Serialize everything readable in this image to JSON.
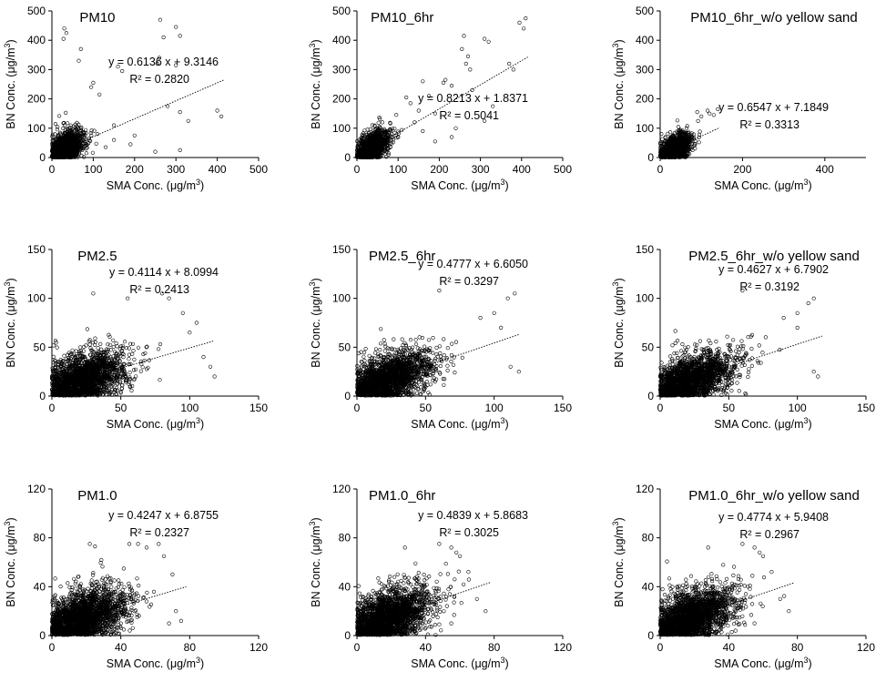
{
  "chart_data": [
    {
      "type": "scatter",
      "title": "PM10",
      "xlabel": "SMA Conc. (μg/m3)",
      "ylabel": "BN Conc. (μg/m3)",
      "xlim": [
        0,
        500
      ],
      "ylim": [
        0,
        500
      ],
      "xticks": [
        0,
        100,
        200,
        300,
        400,
        500
      ],
      "yticks": [
        0,
        100,
        200,
        300,
        400,
        500
      ],
      "equation": "y = 0.6136 x + 9.3146",
      "r2": "R² = 0.2820",
      "slope": 0.6136,
      "intercept": 9.3146,
      "fit_x_range": [
        0,
        415
      ],
      "cloud": {
        "n": 1400,
        "x_mean": 35,
        "x_sd": 22,
        "slope": 0.6136,
        "intercept": 9.3146,
        "noise_sd": 30,
        "x_max": 130
      },
      "outliers": [
        [
          30,
          440
        ],
        [
          35,
          425
        ],
        [
          28,
          405
        ],
        [
          262,
          470
        ],
        [
          270,
          410
        ],
        [
          300,
          445
        ],
        [
          310,
          415
        ],
        [
          160,
          310
        ],
        [
          170,
          295
        ],
        [
          260,
          340
        ],
        [
          255,
          320
        ],
        [
          300,
          315
        ],
        [
          310,
          155
        ],
        [
          400,
          160
        ],
        [
          410,
          140
        ],
        [
          330,
          125
        ],
        [
          280,
          175
        ],
        [
          200,
          75
        ],
        [
          190,
          45
        ],
        [
          250,
          20
        ],
        [
          310,
          25
        ],
        [
          100,
          255
        ],
        [
          95,
          240
        ],
        [
          115,
          215
        ],
        [
          70,
          370
        ],
        [
          65,
          330
        ],
        [
          150,
          60
        ],
        [
          130,
          35
        ],
        [
          150,
          110
        ],
        [
          110,
          80
        ]
      ]
    },
    {
      "type": "scatter",
      "title": "PM10_6hr",
      "xlabel": "SMA Conc. (μg/m3)",
      "ylabel": "BN Conc. (μg/m3)",
      "xlim": [
        0,
        500
      ],
      "ylim": [
        0,
        500
      ],
      "xticks": [
        0,
        100,
        200,
        300,
        400,
        500
      ],
      "yticks": [
        0,
        100,
        200,
        300,
        400,
        500
      ],
      "equation": "y = 0.8213 x + 1.8371",
      "r2": "R² = 0.5041",
      "slope": 0.8213,
      "intercept": 1.8371,
      "fit_x_range": [
        0,
        415
      ],
      "cloud": {
        "n": 1400,
        "x_mean": 35,
        "x_sd": 22,
        "slope": 0.8213,
        "intercept": 1.8371,
        "noise_sd": 28,
        "x_max": 130
      },
      "outliers": [
        [
          405,
          440
        ],
        [
          410,
          475
        ],
        [
          395,
          460
        ],
        [
          310,
          405
        ],
        [
          320,
          395
        ],
        [
          260,
          415
        ],
        [
          255,
          370
        ],
        [
          270,
          345
        ],
        [
          265,
          320
        ],
        [
          275,
          300
        ],
        [
          215,
          265
        ],
        [
          210,
          255
        ],
        [
          230,
          245
        ],
        [
          160,
          260
        ],
        [
          175,
          210
        ],
        [
          120,
          205
        ],
        [
          130,
          185
        ],
        [
          150,
          160
        ],
        [
          190,
          150
        ],
        [
          240,
          100
        ],
        [
          230,
          70
        ],
        [
          310,
          125
        ],
        [
          330,
          175
        ],
        [
          370,
          320
        ],
        [
          380,
          300
        ],
        [
          100,
          70
        ],
        [
          160,
          90
        ],
        [
          190,
          55
        ],
        [
          280,
          230
        ],
        [
          140,
          120
        ]
      ]
    },
    {
      "type": "scatter",
      "title": "PM10_6hr_w/o yellow sand",
      "xlabel": "SMA Conc. (μg/m3)",
      "ylabel": "BN Conc. (μg/m3)",
      "xlim": [
        0,
        500
      ],
      "ylim": [
        0,
        500
      ],
      "xticks": [
        0,
        200,
        400
      ],
      "yticks": [
        0,
        100,
        200,
        300,
        400,
        500
      ],
      "equation": "y = 0.6547 x + 7.1849",
      "r2": "R² = 0.3313",
      "slope": 0.6547,
      "intercept": 7.1849,
      "fit_x_range": [
        0,
        145
      ],
      "cloud": {
        "n": 1300,
        "x_mean": 35,
        "x_sd": 20,
        "slope": 0.6547,
        "intercept": 7.1849,
        "noise_sd": 24,
        "x_max": 140
      },
      "outliers": [
        [
          115,
          160
        ],
        [
          120,
          150
        ],
        [
          130,
          145
        ],
        [
          100,
          140
        ],
        [
          90,
          155
        ],
        [
          140,
          165
        ]
      ]
    },
    {
      "type": "scatter",
      "title": "PM2.5",
      "xlabel": "SMA Conc. (μg/m3)",
      "ylabel": "BN Conc. (μg/m3)",
      "xlim": [
        0,
        150
      ],
      "ylim": [
        0,
        150
      ],
      "xticks": [
        0,
        50,
        100,
        150
      ],
      "yticks": [
        0,
        50,
        100,
        150
      ],
      "equation": "y = 0.4114 x + 8.0994",
      "r2": "R² = 0.2413",
      "slope": 0.4114,
      "intercept": 8.0994,
      "fit_x_range": [
        0,
        118
      ],
      "cloud": {
        "n": 2000,
        "x_mean": 22,
        "x_sd": 17,
        "slope": 0.4114,
        "intercept": 8.0994,
        "noise_sd": 14,
        "x_max": 118
      },
      "outliers": [
        [
          80,
          105
        ],
        [
          85,
          100
        ],
        [
          55,
          100
        ],
        [
          30,
          105
        ],
        [
          100,
          65
        ],
        [
          110,
          40
        ],
        [
          118,
          20
        ],
        [
          115,
          30
        ],
        [
          95,
          85
        ],
        [
          105,
          75
        ]
      ]
    },
    {
      "type": "scatter",
      "title": "PM2.5_6hr",
      "xlabel": "SMA Conc. (μg/m3)",
      "ylabel": "BN Conc. (μg/m3)",
      "xlim": [
        0,
        150
      ],
      "ylim": [
        0,
        150
      ],
      "xticks": [
        0,
        50,
        100,
        150
      ],
      "yticks": [
        0,
        50,
        100,
        150
      ],
      "equation": "y = 0.4777 x + 6.6050",
      "r2": "R² = 0.3297",
      "slope": 0.4777,
      "intercept": 6.605,
      "fit_x_range": [
        0,
        118
      ],
      "cloud": {
        "n": 2000,
        "x_mean": 22,
        "x_sd": 17,
        "slope": 0.4777,
        "intercept": 6.605,
        "noise_sd": 14,
        "x_max": 118
      },
      "outliers": [
        [
          115,
          105
        ],
        [
          110,
          100
        ],
        [
          60,
          108
        ],
        [
          100,
          85
        ],
        [
          112,
          30
        ],
        [
          118,
          25
        ],
        [
          90,
          80
        ],
        [
          105,
          70
        ]
      ]
    },
    {
      "type": "scatter",
      "title": "PM2.5_6hr_w/o yellow sand",
      "xlabel": "SMA Conc. (μg/m3)",
      "ylabel": "BN Conc. (μg/m3)",
      "xlim": [
        0,
        150
      ],
      "ylim": [
        0,
        150
      ],
      "xticks": [
        0,
        50,
        100,
        150
      ],
      "yticks": [
        0,
        50,
        100,
        150
      ],
      "equation": "y = 0.4627 x + 6.7902",
      "r2": "R² = 0.3192",
      "slope": 0.4627,
      "intercept": 6.7902,
      "fit_x_range": [
        0,
        118
      ],
      "cloud": {
        "n": 2000,
        "x_mean": 22,
        "x_sd": 17,
        "slope": 0.4627,
        "intercept": 6.7902,
        "noise_sd": 14,
        "x_max": 118
      },
      "outliers": [
        [
          112,
          100
        ],
        [
          108,
          95
        ],
        [
          60,
          108
        ],
        [
          100,
          85
        ],
        [
          112,
          25
        ],
        [
          115,
          20
        ],
        [
          90,
          80
        ],
        [
          100,
          70
        ]
      ]
    },
    {
      "type": "scatter",
      "title": "PM1.0",
      "xlabel": "SMA Conc. (μg/m3)",
      "ylabel": "BN Conc. (μg/m3)",
      "xlim": [
        0,
        120
      ],
      "ylim": [
        0,
        120
      ],
      "xticks": [
        0,
        40,
        80,
        120
      ],
      "yticks": [
        0,
        40,
        80,
        120
      ],
      "equation": "y = 0.4247 x + 6.8755",
      "r2": "R² = 0.2327",
      "slope": 0.4247,
      "intercept": 6.8755,
      "fit_x_range": [
        0,
        78
      ],
      "cloud": {
        "n": 2200,
        "x_mean": 18,
        "x_sd": 13,
        "slope": 0.4247,
        "intercept": 6.8755,
        "noise_sd": 12,
        "x_max": 75
      },
      "outliers": [
        [
          22,
          75
        ],
        [
          25,
          73
        ],
        [
          45,
          75
        ],
        [
          50,
          75
        ],
        [
          55,
          72
        ],
        [
          62,
          75
        ],
        [
          65,
          65
        ],
        [
          70,
          50
        ],
        [
          72,
          20
        ],
        [
          75,
          12
        ],
        [
          68,
          10
        ]
      ]
    },
    {
      "type": "scatter",
      "title": "PM1.0_6hr",
      "xlabel": "SMA Conc. (μg/m3)",
      "ylabel": "BN Conc. (μg/m3)",
      "xlim": [
        0,
        120
      ],
      "ylim": [
        0,
        120
      ],
      "xticks": [
        0,
        40,
        80,
        120
      ],
      "yticks": [
        0,
        40,
        80,
        120
      ],
      "equation": "y = 0.4839 x + 5.8683",
      "r2": "R² = 0.3025",
      "slope": 0.4839,
      "intercept": 5.8683,
      "fit_x_range": [
        0,
        78
      ],
      "cloud": {
        "n": 2200,
        "x_mean": 18,
        "x_sd": 13,
        "slope": 0.4839,
        "intercept": 5.8683,
        "noise_sd": 12,
        "x_max": 75
      },
      "outliers": [
        [
          28,
          72
        ],
        [
          48,
          75
        ],
        [
          55,
          72
        ],
        [
          58,
          68
        ],
        [
          60,
          65
        ],
        [
          65,
          52
        ],
        [
          70,
          30
        ],
        [
          75,
          20
        ],
        [
          55,
          10
        ]
      ]
    },
    {
      "type": "scatter",
      "title": "PM1.0_6hr_w/o yellow sand",
      "xlabel": "SMA Conc. (μg/m3)",
      "ylabel": "BN Conc. (μg/m3)",
      "xlim": [
        0,
        120
      ],
      "ylim": [
        0,
        120
      ],
      "xticks": [
        0,
        40,
        80,
        120
      ],
      "yticks": [
        0,
        40,
        80,
        120
      ],
      "equation": "y = 0.4774 x + 5.9408",
      "r2": "R² = 0.2967",
      "slope": 0.4774,
      "intercept": 5.9408,
      "fit_x_range": [
        0,
        78
      ],
      "cloud": {
        "n": 2200,
        "x_mean": 18,
        "x_sd": 13,
        "slope": 0.4774,
        "intercept": 5.9408,
        "noise_sd": 12,
        "x_max": 75
      },
      "outliers": [
        [
          28,
          72
        ],
        [
          48,
          75
        ],
        [
          55,
          72
        ],
        [
          58,
          68
        ],
        [
          60,
          65
        ],
        [
          65,
          52
        ],
        [
          70,
          30
        ],
        [
          75,
          20
        ],
        [
          55,
          10
        ]
      ]
    }
  ]
}
